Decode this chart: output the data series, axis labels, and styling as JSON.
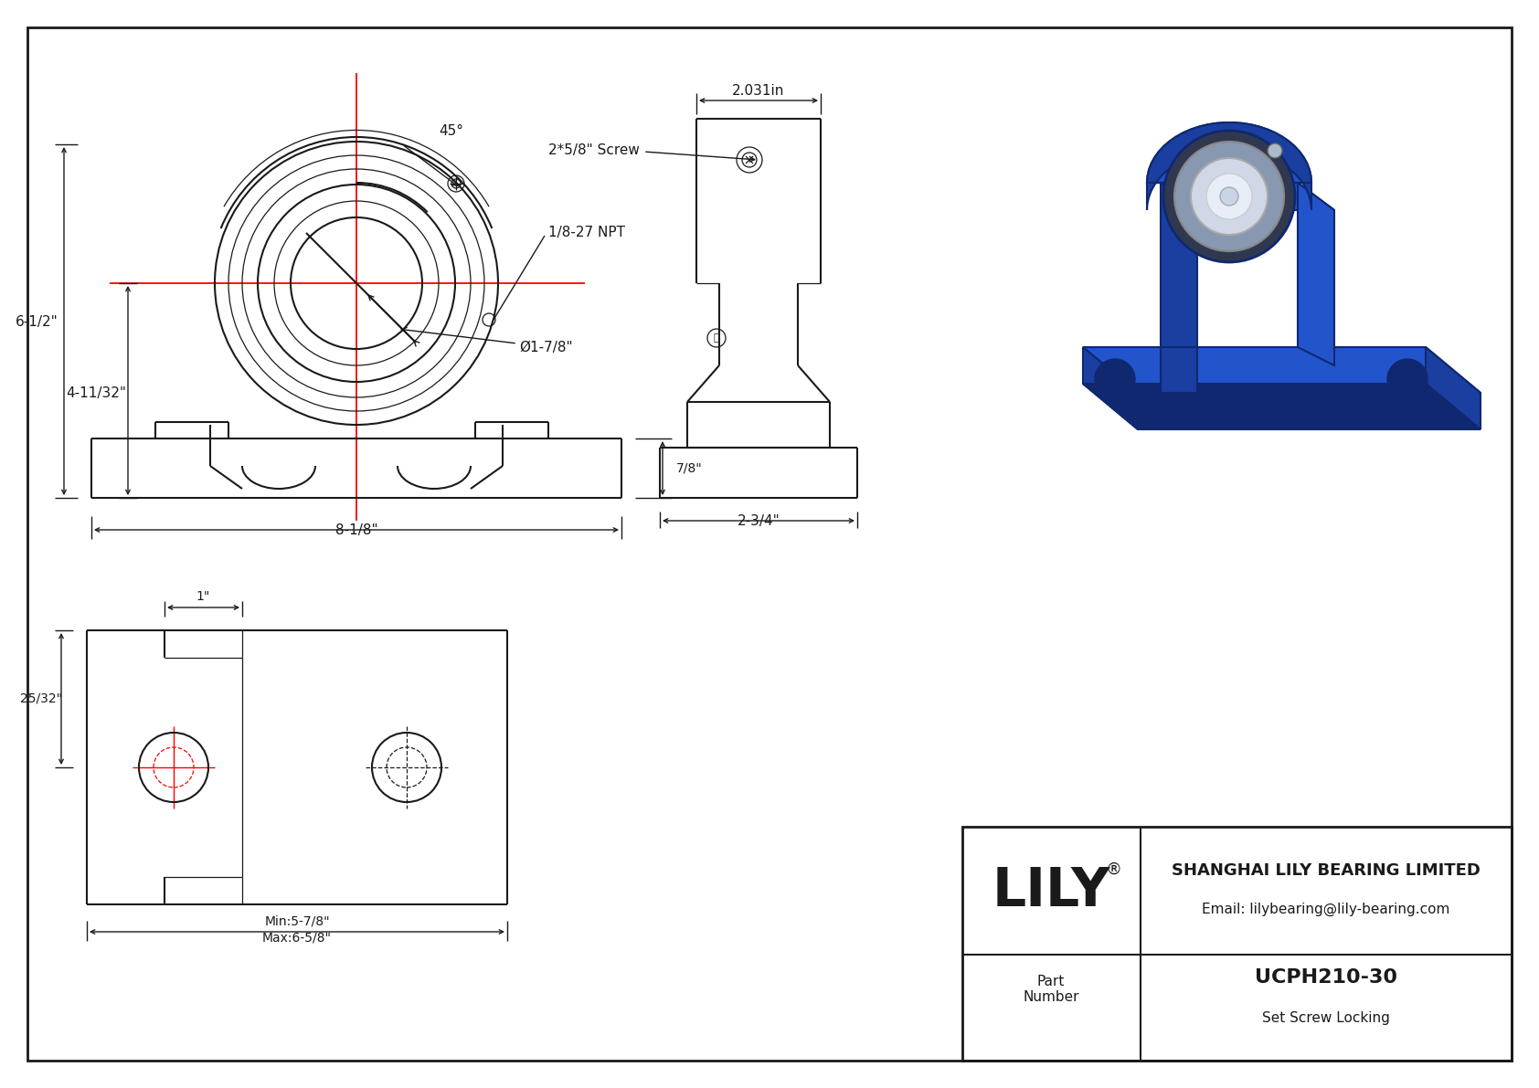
{
  "bg_color": "#ffffff",
  "line_color": "#1a1a1a",
  "red_color": "#ff0000",
  "title_block": {
    "company": "SHANGHAI LILY BEARING LIMITED",
    "email": "Email: lilybearing@lily-bearing.com",
    "part_label": "Part\nNumber",
    "part_number": "UCPH210-30",
    "locking": "Set Screw Locking",
    "brand": "LILY"
  },
  "front_view": {
    "label_45deg": "45°",
    "label_npt": "1/8-27 NPT",
    "label_dia": "Ø1-7/8\"",
    "label_height1": "6-1/2\"",
    "label_height2": "4-11/32\"",
    "label_width": "8-1/8\"",
    "label_7_8": "7/8\""
  },
  "side_view": {
    "label_top": "2.031in",
    "label_screw": "2*5/8\" Screw",
    "label_width": "2-3/4\""
  },
  "top_view": {
    "label_1in": "1\"",
    "label_25_32": "25/32\"",
    "label_min": "Min:5-7/8\"",
    "label_max": "Max:6-5/8\""
  },
  "iso_blue": "#2255cc",
  "iso_blue_dark": "#1a3fa0",
  "iso_blue_darker": "#0f2870",
  "iso_silver": "#c0c8d8",
  "iso_silver_dark": "#8898b0"
}
